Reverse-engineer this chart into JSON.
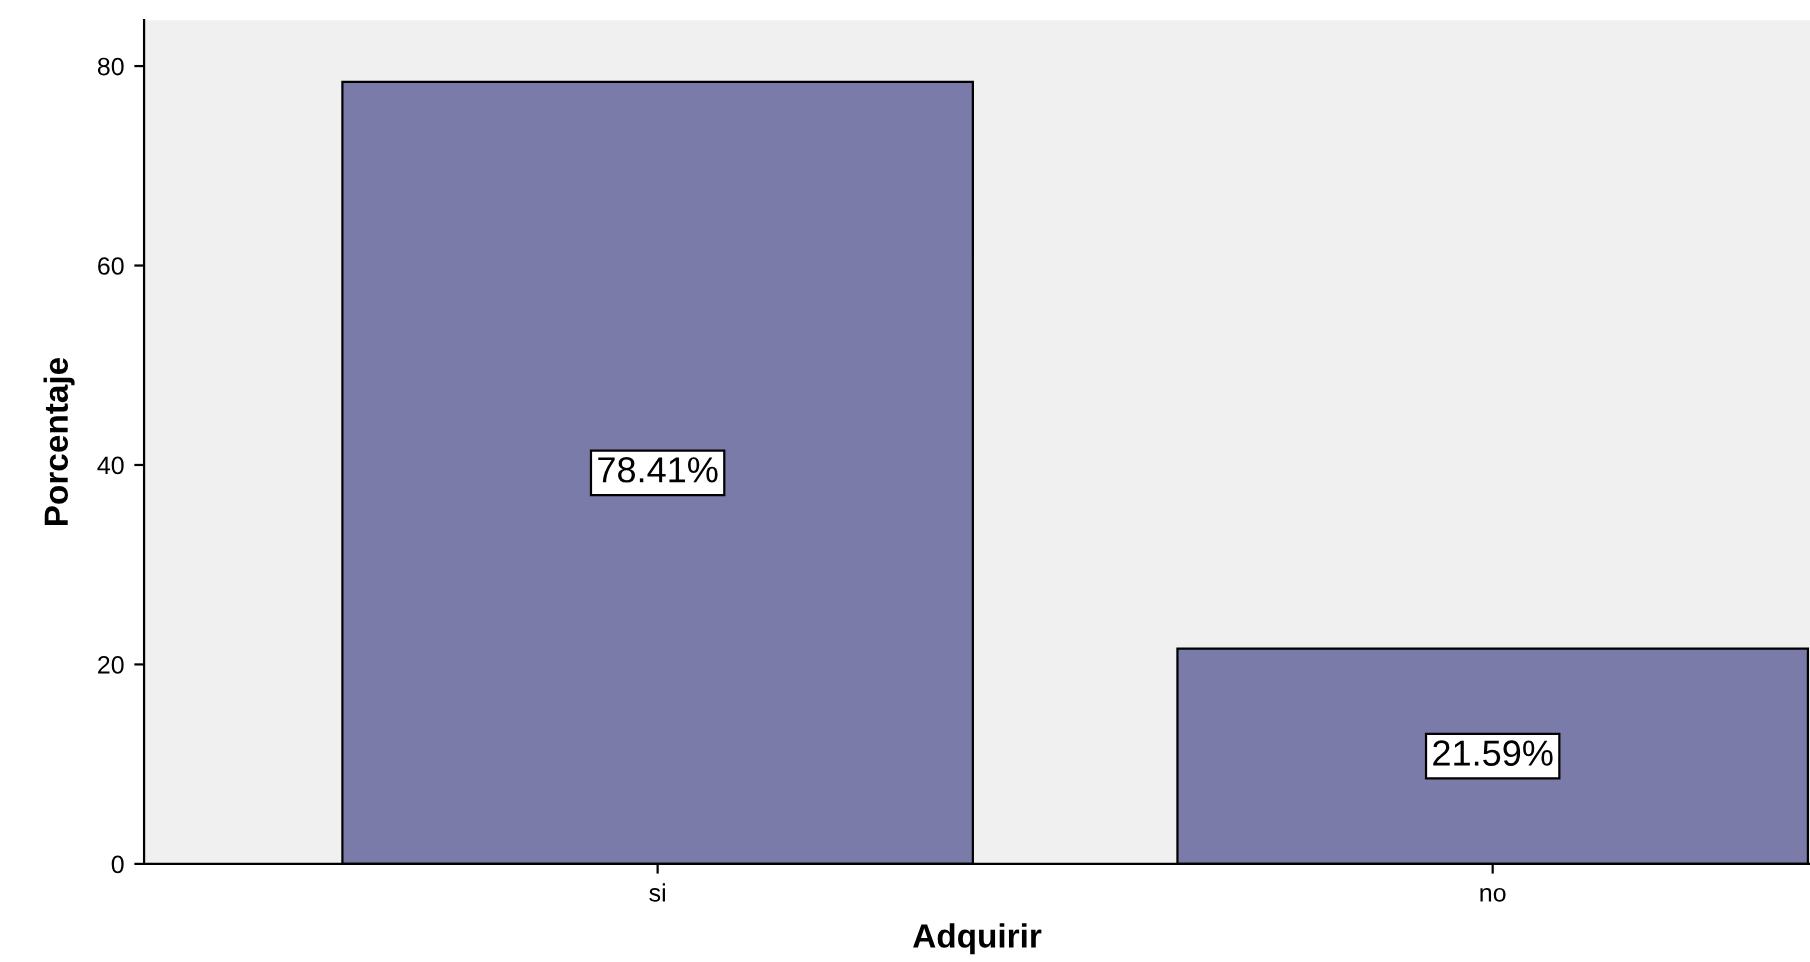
{
  "chart_data": {
    "type": "bar",
    "xlabel": "Adquirir",
    "ylabel": "Porcentaje",
    "categories": [
      "si",
      "no"
    ],
    "values": [
      78.41,
      21.59
    ],
    "value_labels": [
      "78.41%",
      "21.59%"
    ],
    "color": "#7b7ba9",
    "ylim": [
      0,
      84.6
    ],
    "yticks": [
      0,
      20,
      40,
      60,
      80
    ],
    "grid": false,
    "legend": false
  }
}
